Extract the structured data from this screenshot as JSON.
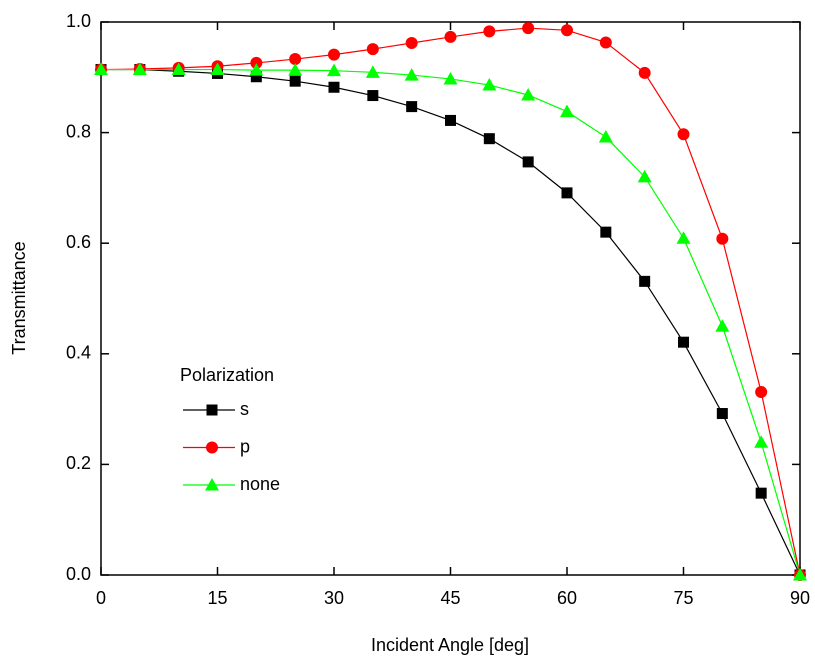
{
  "chart_data": {
    "type": "line",
    "x_label": "Incident Angle [deg]",
    "y_label": "Transmittance",
    "x": [
      0,
      5,
      10,
      15,
      20,
      25,
      30,
      35,
      40,
      45,
      50,
      55,
      60,
      65,
      70,
      75,
      80,
      85,
      90
    ],
    "series": [
      {
        "name": "s",
        "color": "#000000",
        "marker": "square",
        "values": [
          0.914,
          0.914,
          0.911,
          0.907,
          0.901,
          0.893,
          0.882,
          0.867,
          0.847,
          0.822,
          0.789,
          0.747,
          0.691,
          0.62,
          0.531,
          0.421,
          0.292,
          0.148,
          0.0
        ]
      },
      {
        "name": "p",
        "color": "#ff0000",
        "marker": "circle",
        "values": [
          0.914,
          0.915,
          0.917,
          0.92,
          0.926,
          0.933,
          0.941,
          0.951,
          0.962,
          0.973,
          0.983,
          0.989,
          0.985,
          0.963,
          0.908,
          0.797,
          0.608,
          0.331,
          0.0
        ]
      },
      {
        "name": "none",
        "color": "#00ff00",
        "marker": "triangle",
        "values": [
          0.914,
          0.914,
          0.914,
          0.914,
          0.913,
          0.913,
          0.912,
          0.909,
          0.904,
          0.897,
          0.886,
          0.868,
          0.838,
          0.792,
          0.72,
          0.609,
          0.45,
          0.24,
          0.0
        ]
      }
    ],
    "legend_title": "Polarization",
    "legend": "lower left",
    "xlim": [
      0,
      90
    ],
    "xticks": [
      0,
      15,
      30,
      45,
      60,
      75,
      90
    ],
    "ylim": [
      0,
      1
    ],
    "yticks": [
      {
        "value": 0,
        "label": "0.0"
      },
      0.2,
      0.4,
      0.6,
      0.8,
      {
        "value": 1,
        "label": "1.0"
      }
    ],
    "grid": false
  }
}
